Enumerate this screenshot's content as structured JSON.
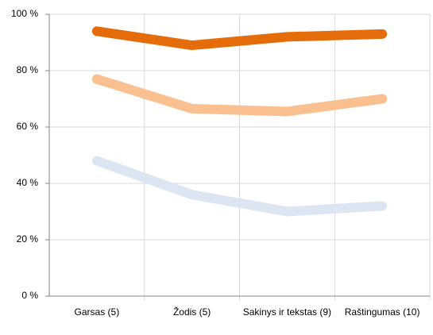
{
  "chart_data": {
    "type": "line",
    "categories": [
      "Garsas (5)",
      "Žodis (5)",
      "Sakinys ir tekstas (9)",
      "Raštingumas (10)"
    ],
    "series": [
      {
        "color": "#e46c0a",
        "values": [
          94,
          89,
          92,
          93
        ]
      },
      {
        "color": "#fac090",
        "values": [
          77,
          66.5,
          65.5,
          70
        ]
      },
      {
        "color": "#dce6f2",
        "values": [
          48,
          36,
          30,
          32
        ]
      }
    ],
    "ylim": [
      0,
      100
    ],
    "yticks": [
      {
        "value": 0,
        "label": "0 %"
      },
      {
        "value": 20,
        "label": "20 %"
      },
      {
        "value": 40,
        "label": "40 %"
      },
      {
        "value": 60,
        "label": "60 %"
      },
      {
        "value": 80,
        "label": "80 %"
      },
      {
        "value": 100,
        "label": "100 %"
      }
    ],
    "grid": true
  }
}
